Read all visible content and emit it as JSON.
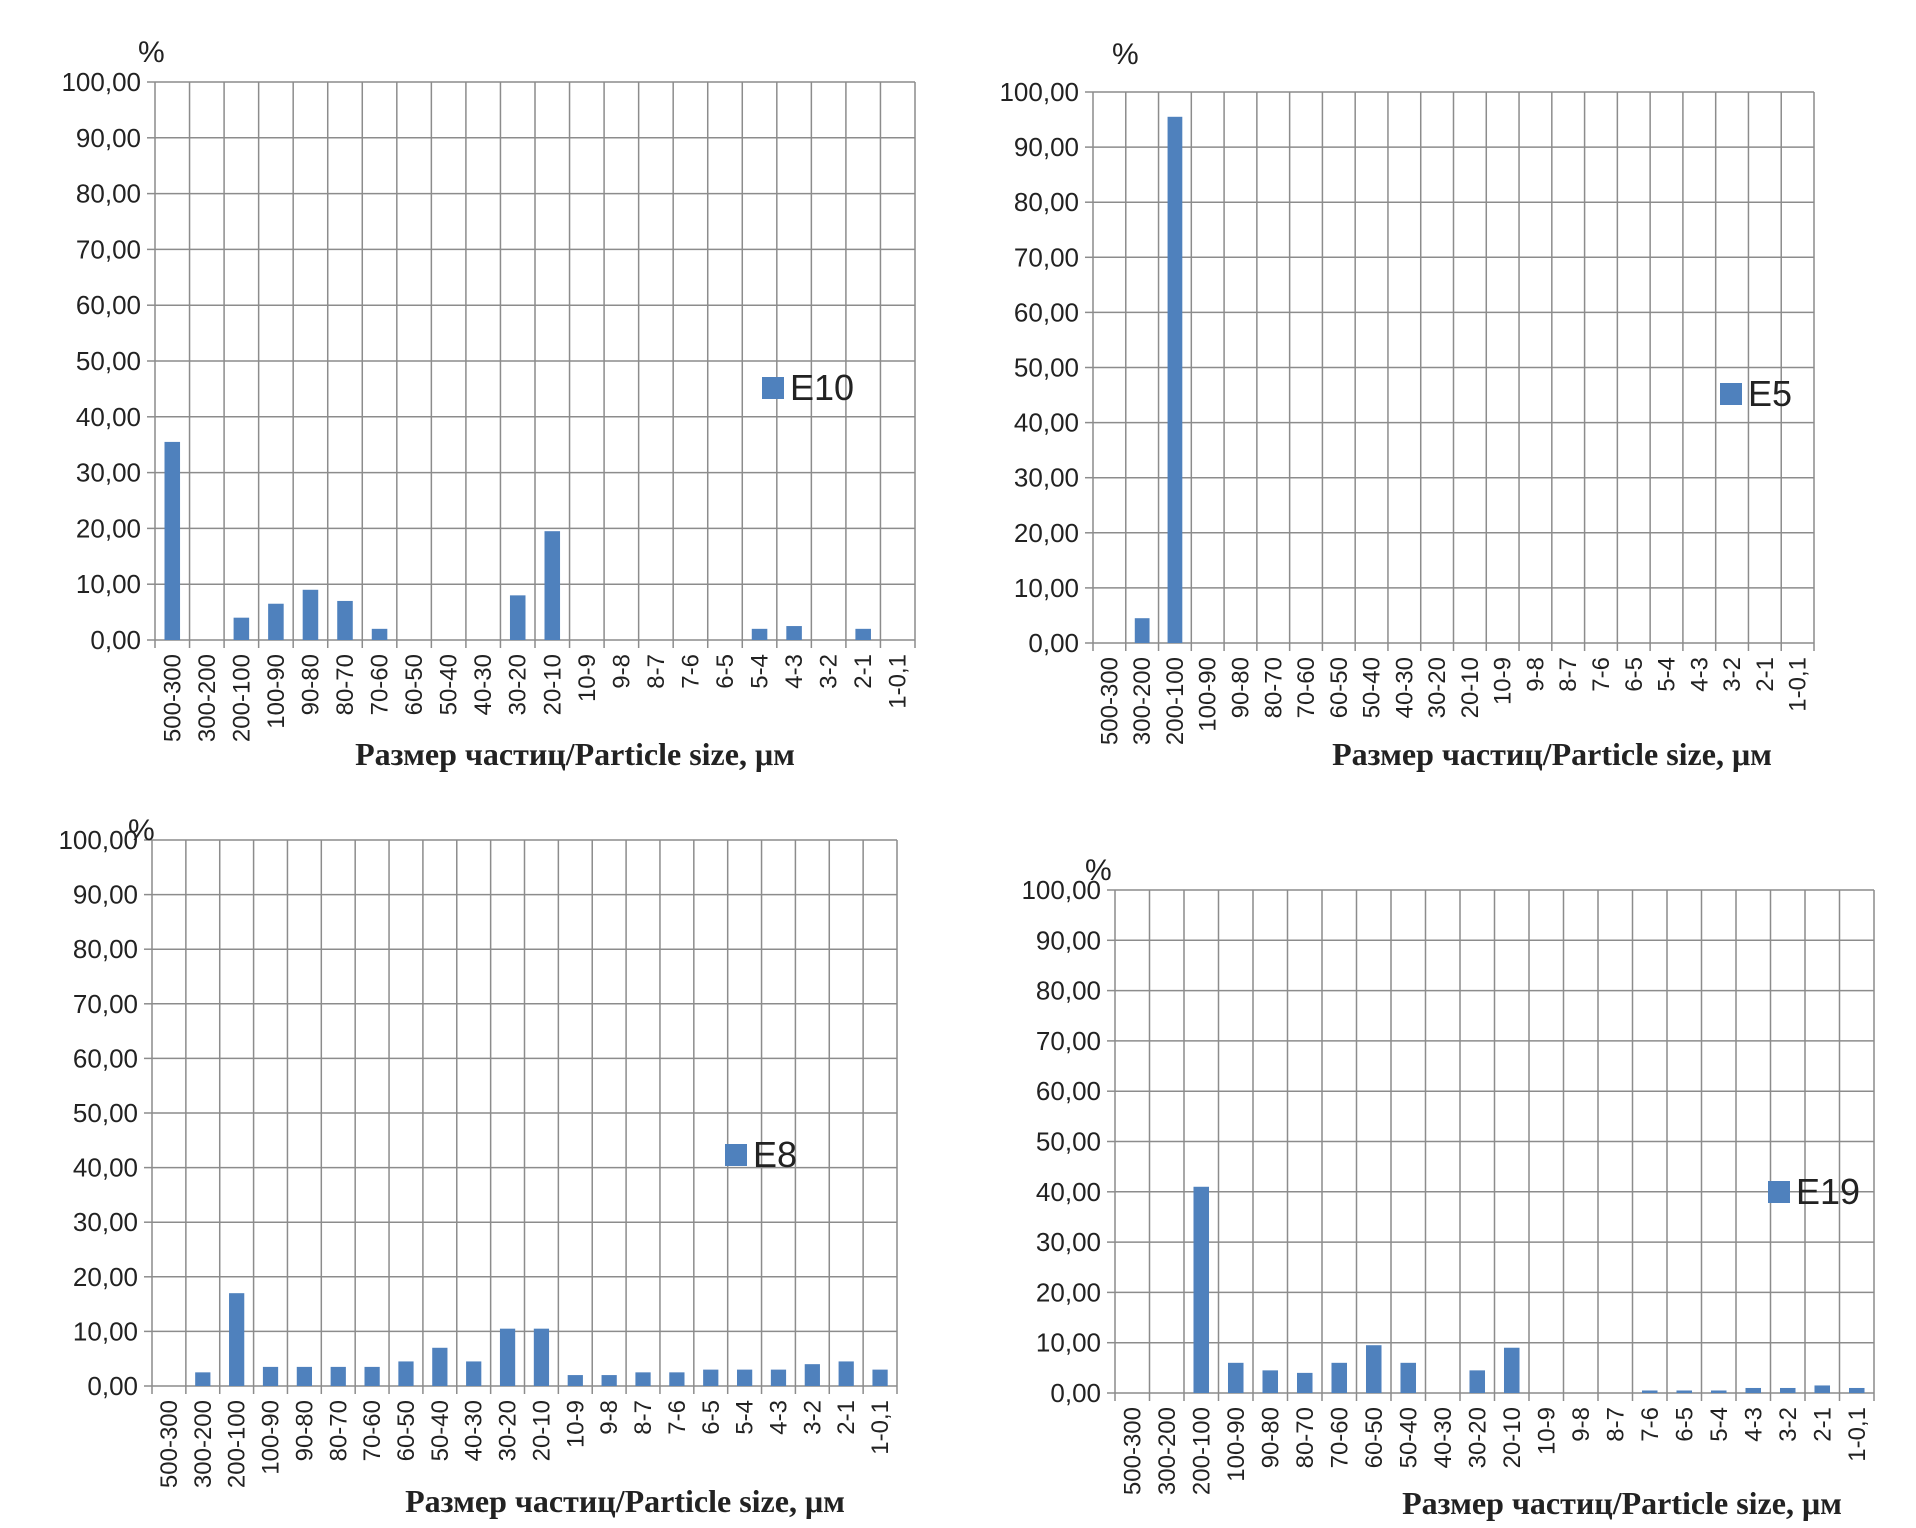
{
  "chart_data": [
    {
      "type": "bar",
      "ylabel": "%",
      "xlabel": "Размер частиц/Particle size, μм",
      "ylim": [
        0,
        100
      ],
      "yticks": [
        "0,00",
        "10,00",
        "20,00",
        "30,00",
        "40,00",
        "50,00",
        "60,00",
        "70,00",
        "80,00",
        "90,00",
        "100,00"
      ],
      "grid": true,
      "legend_position": "right",
      "colors": {
        "bar": "#4f81bd"
      },
      "categories": [
        "500-300",
        "300-200",
        "200-100",
        "100-90",
        "90-80",
        "80-70",
        "70-60",
        "60-50",
        "50-40",
        "40-30",
        "30-20",
        "20-10",
        "10-9",
        "9-8",
        "8-7",
        "7-6",
        "6-5",
        "5-4",
        "4-3",
        "3-2",
        "2-1",
        "1-0,1"
      ],
      "series": [
        {
          "name": "E10",
          "values": [
            35.5,
            0,
            4,
            6.5,
            9,
            7,
            2,
            0,
            0,
            0,
            8,
            19.5,
            0,
            0,
            0,
            0,
            0,
            2,
            2.5,
            0,
            2,
            0
          ]
        }
      ]
    },
    {
      "type": "bar",
      "ylabel": "%",
      "xlabel": "Размер частиц/Particle size, μм",
      "ylim": [
        0,
        100
      ],
      "yticks": [
        "0,00",
        "10,00",
        "20,00",
        "30,00",
        "40,00",
        "50,00",
        "60,00",
        "70,00",
        "80,00",
        "90,00",
        "100,00"
      ],
      "grid": true,
      "legend_position": "right",
      "colors": {
        "bar": "#4f81bd"
      },
      "categories": [
        "500-300",
        "300-200",
        "200-100",
        "100-90",
        "90-80",
        "80-70",
        "70-60",
        "60-50",
        "50-40",
        "40-30",
        "30-20",
        "20-10",
        "10-9",
        "9-8",
        "8-7",
        "7-6",
        "6-5",
        "5-4",
        "4-3",
        "3-2",
        "2-1",
        "1-0,1"
      ],
      "series": [
        {
          "name": "E5",
          "values": [
            0,
            4.5,
            95.5,
            0,
            0,
            0,
            0,
            0,
            0,
            0,
            0,
            0,
            0,
            0,
            0,
            0,
            0,
            0,
            0,
            0,
            0,
            0
          ]
        }
      ]
    },
    {
      "type": "bar",
      "ylabel": "%",
      "xlabel": "Размер частиц/Particle size, μм",
      "ylim": [
        0,
        100
      ],
      "yticks": [
        "0,00",
        "10,00",
        "20,00",
        "30,00",
        "40,00",
        "50,00",
        "60,00",
        "70,00",
        "80,00",
        "90,00",
        "100,00"
      ],
      "grid": true,
      "legend_position": "right",
      "colors": {
        "bar": "#4f81bd"
      },
      "categories": [
        "500-300",
        "300-200",
        "200-100",
        "100-90",
        "90-80",
        "80-70",
        "70-60",
        "60-50",
        "50-40",
        "40-30",
        "30-20",
        "20-10",
        "10-9",
        "9-8",
        "8-7",
        "7-6",
        "6-5",
        "5-4",
        "4-3",
        "3-2",
        "2-1",
        "1-0,1"
      ],
      "series": [
        {
          "name": "E8",
          "values": [
            0,
            2.5,
            17,
            3.5,
            3.5,
            3.5,
            3.5,
            4.5,
            7,
            4.5,
            10.5,
            10.5,
            2,
            2,
            2.5,
            2.5,
            3,
            3,
            3,
            4,
            4.5,
            3
          ]
        }
      ]
    },
    {
      "type": "bar",
      "ylabel": "%",
      "xlabel": "Размер частиц/Particle size, μм",
      "ylim": [
        0,
        100
      ],
      "yticks": [
        "0,00",
        "10,00",
        "20,00",
        "30,00",
        "40,00",
        "50,00",
        "60,00",
        "70,00",
        "80,00",
        "90,00",
        "100,00"
      ],
      "grid": true,
      "legend_position": "right",
      "colors": {
        "bar": "#4f81bd"
      },
      "categories": [
        "500-300",
        "300-200",
        "200-100",
        "100-90",
        "90-80",
        "80-70",
        "70-60",
        "60-50",
        "50-40",
        "40-30",
        "30-20",
        "20-10",
        "10-9",
        "9-8",
        "8-7",
        "7-6",
        "6-5",
        "5-4",
        "4-3",
        "3-2",
        "2-1",
        "1-0,1"
      ],
      "series": [
        {
          "name": "E19",
          "values": [
            0,
            0,
            41,
            6,
            4.5,
            4,
            6,
            9.5,
            6,
            0,
            4.5,
            9,
            0,
            0,
            0,
            0.5,
            0.5,
            0.5,
            1,
            1,
            1.5,
            1
          ]
        }
      ]
    }
  ]
}
